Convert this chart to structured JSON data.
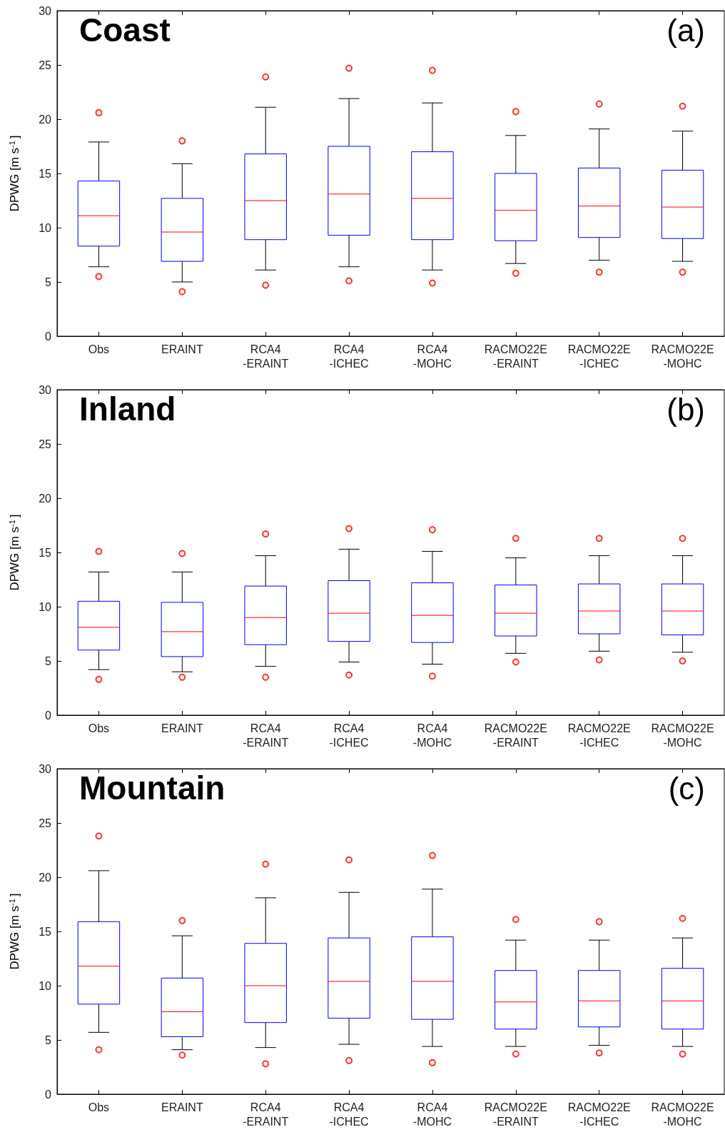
{
  "chart_data": [
    {
      "type": "box",
      "title": "Coast",
      "annotations": [
        "(a)"
      ],
      "ylabel": "DPWG [m s$^{-1}$]",
      "categories": [
        "Obs",
        "ERAINT",
        "RCA4\n-ERAINT",
        "RCA4\n-ICHEC",
        "RCA4\n-MOHC",
        "RACMO22E\n-ERAINT",
        "RACMO22E\n-ICHEC",
        "RACMO22E\n-MOHC"
      ],
      "ylim": [
        0,
        30
      ],
      "yticks": [
        0,
        5,
        10,
        15,
        20,
        25,
        30
      ],
      "marker": "circle",
      "series": [
        {
          "color": "#0000ff",
          "boxes": [
            {
              "low": 6.4,
              "q1": 8.3,
              "median": 11.1,
              "q3": 14.3,
              "high": 17.9,
              "outliers": [
                20.6,
                5.5
              ]
            },
            {
              "low": 5.0,
              "q1": 6.9,
              "median": 9.6,
              "q3": 12.7,
              "high": 15.9,
              "outliers": [
                18.0,
                4.1
              ]
            },
            {
              "low": 6.1,
              "q1": 8.9,
              "median": 12.5,
              "q3": 16.8,
              "high": 21.1,
              "outliers": [
                23.9,
                4.7
              ]
            },
            {
              "low": 6.4,
              "q1": 9.3,
              "median": 13.1,
              "q3": 17.5,
              "high": 21.9,
              "outliers": [
                24.7,
                5.1
              ]
            },
            {
              "low": 6.1,
              "q1": 8.9,
              "median": 12.7,
              "q3": 17.0,
              "high": 21.5,
              "outliers": [
                24.5,
                4.9
              ]
            },
            {
              "low": 6.7,
              "q1": 8.8,
              "median": 11.6,
              "q3": 15.0,
              "high": 18.5,
              "outliers": [
                20.7,
                5.8
              ]
            },
            {
              "low": 7.0,
              "q1": 9.1,
              "median": 12.0,
              "q3": 15.5,
              "high": 19.1,
              "outliers": [
                21.4,
                5.9
              ]
            },
            {
              "low": 6.9,
              "q1": 9.0,
              "median": 11.9,
              "q3": 15.3,
              "high": 18.9,
              "outliers": [
                21.2,
                5.9
              ]
            }
          ]
        }
      ]
    },
    {
      "type": "box",
      "title": "Inland",
      "annotations": [
        "(b)"
      ],
      "ylabel": "DPWG [m s$^{-1}$]",
      "categories": [
        "Obs",
        "ERAINT",
        "RCA4\n-ERAINT",
        "RCA4\n-ICHEC",
        "RCA4\n-MOHC",
        "RACMO22E\n-ERAINT",
        "RACMO22E\n-ICHEC",
        "RACMO22E\n-MOHC"
      ],
      "ylim": [
        0,
        30
      ],
      "yticks": [
        0,
        5,
        10,
        15,
        20,
        25,
        30
      ],
      "marker": "circle",
      "series": [
        {
          "color": "#0000ff",
          "boxes": [
            {
              "low": 4.2,
              "q1": 6.0,
              "median": 8.1,
              "q3": 10.5,
              "high": 13.2,
              "outliers": [
                15.1,
                3.3
              ]
            },
            {
              "low": 4.0,
              "q1": 5.4,
              "median": 7.7,
              "q3": 10.4,
              "high": 13.2,
              "outliers": [
                14.9,
                3.5
              ]
            },
            {
              "low": 4.5,
              "q1": 6.5,
              "median": 9.0,
              "q3": 11.9,
              "high": 14.7,
              "outliers": [
                16.7,
                3.5
              ]
            },
            {
              "low": 4.9,
              "q1": 6.8,
              "median": 9.4,
              "q3": 12.4,
              "high": 15.3,
              "outliers": [
                17.2,
                3.7
              ]
            },
            {
              "low": 4.7,
              "q1": 6.7,
              "median": 9.2,
              "q3": 12.2,
              "high": 15.1,
              "outliers": [
                17.1,
                3.6
              ]
            },
            {
              "low": 5.7,
              "q1": 7.3,
              "median": 9.4,
              "q3": 12.0,
              "high": 14.5,
              "outliers": [
                16.3,
                4.9
              ]
            },
            {
              "low": 5.9,
              "q1": 7.5,
              "median": 9.6,
              "q3": 12.1,
              "high": 14.7,
              "outliers": [
                16.3,
                5.1
              ]
            },
            {
              "low": 5.8,
              "q1": 7.4,
              "median": 9.6,
              "q3": 12.1,
              "high": 14.7,
              "outliers": [
                16.3,
                5.0
              ]
            }
          ]
        }
      ]
    },
    {
      "type": "box",
      "title": "Mountain",
      "annotations": [
        "(c)"
      ],
      "ylabel": "DPWG [m s$^{-1}$]",
      "categories": [
        "Obs",
        "ERAINT",
        "RCA4\n-ERAINT",
        "RCA4\n-ICHEC",
        "RCA4\n-MOHC",
        "RACMO22E\n-ERAINT",
        "RACMO22E\n-ICHEC",
        "RACMO22E\n-MOHC"
      ],
      "ylim": [
        0,
        30
      ],
      "yticks": [
        0,
        5,
        10,
        15,
        20,
        25,
        30
      ],
      "marker": "circle",
      "series": [
        {
          "color": "#0000ff",
          "boxes": [
            {
              "low": 5.7,
              "q1": 8.3,
              "median": 11.8,
              "q3": 15.9,
              "high": 20.6,
              "outliers": [
                23.8,
                4.1
              ]
            },
            {
              "low": 4.1,
              "q1": 5.3,
              "median": 7.6,
              "q3": 10.7,
              "high": 14.6,
              "outliers": [
                16.0,
                3.6
              ]
            },
            {
              "low": 4.3,
              "q1": 6.6,
              "median": 10.0,
              "q3": 13.9,
              "high": 18.1,
              "outliers": [
                21.2,
                2.8
              ]
            },
            {
              "low": 4.6,
              "q1": 7.0,
              "median": 10.4,
              "q3": 14.4,
              "high": 18.6,
              "outliers": [
                21.6,
                3.1
              ]
            },
            {
              "low": 4.4,
              "q1": 6.9,
              "median": 10.4,
              "q3": 14.5,
              "high": 18.9,
              "outliers": [
                22.0,
                2.9
              ]
            },
            {
              "low": 4.4,
              "q1": 6.0,
              "median": 8.5,
              "q3": 11.4,
              "high": 14.2,
              "outliers": [
                16.1,
                3.7
              ]
            },
            {
              "low": 4.5,
              "q1": 6.2,
              "median": 8.6,
              "q3": 11.4,
              "high": 14.2,
              "outliers": [
                15.9,
                3.8
              ]
            },
            {
              "low": 4.4,
              "q1": 6.0,
              "median": 8.6,
              "q3": 11.6,
              "high": 14.4,
              "outliers": [
                16.2,
                3.7
              ]
            }
          ]
        }
      ]
    }
  ]
}
